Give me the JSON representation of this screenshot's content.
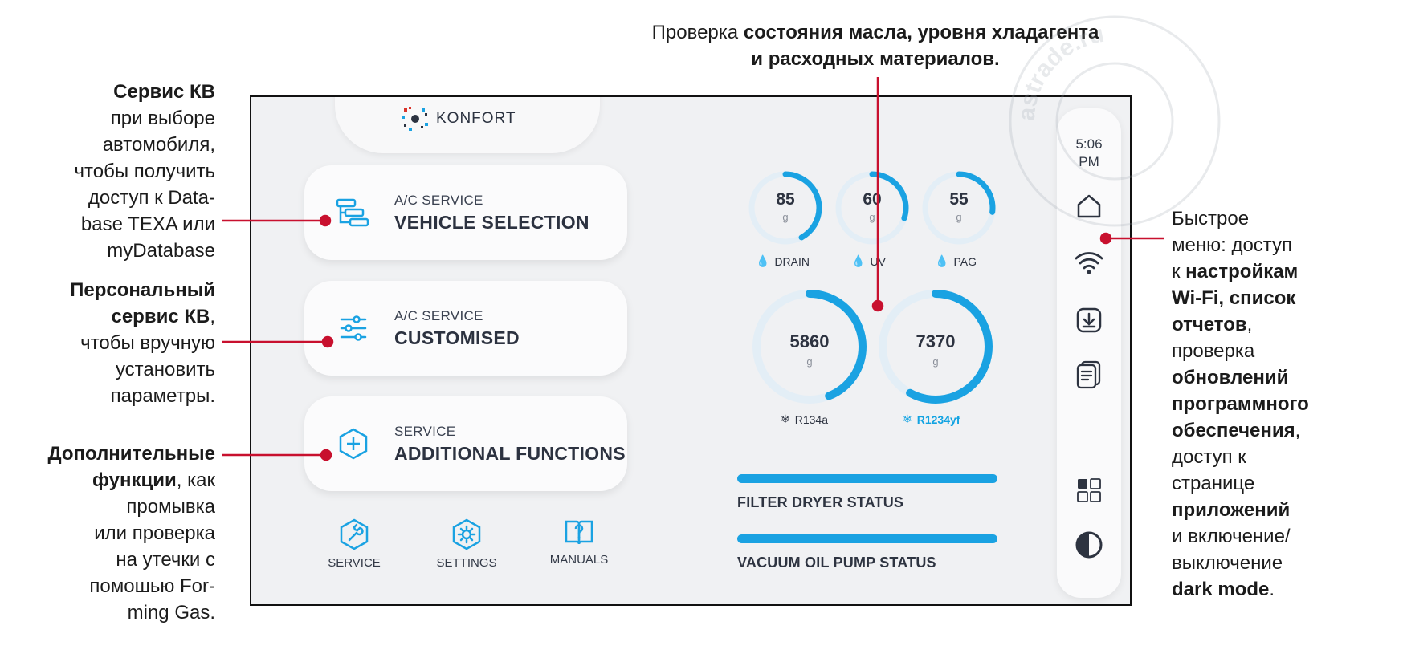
{
  "annotations": {
    "left_service_kb": {
      "bold": "Сервис КВ",
      "lines": [
        "при выборе",
        "автомобиля,",
        "чтобы получить",
        "доступ к Data-",
        "base TEXA или",
        "myDatabase"
      ]
    },
    "left_personal": {
      "bold1": "Персональный",
      "bold2": "сервис КВ",
      "after": ",",
      "lines": [
        "чтобы вручную",
        "установить",
        "параметры."
      ]
    },
    "left_additional": {
      "bold1": "Дополнительные",
      "bold2": "функции",
      "after": ", как",
      "lines": [
        "промывка",
        "или проверка",
        "на утечки с",
        "помошью For-",
        "ming Gas."
      ]
    },
    "top_check": {
      "pre": "Проверка ",
      "bold1": "состояния масла, уровня хладагента",
      "bold2": "и расходных материалов."
    },
    "right_quick": {
      "l1": "Быстрое",
      "l2": "меню: доступ",
      "l3_pre": "к ",
      "l3_bold": "настройкам",
      "l4_bold": "Wi-Fi, список",
      "l5_bold": "отчетов",
      "l5_after": ",",
      "l6": "проверка",
      "l7_bold": "обновлений",
      "l8_bold": "программного",
      "l9_bold": "обеспечения",
      "l9_after": ",",
      "l10": "доступ к",
      "l11": "странице",
      "l12_bold": "приложений",
      "l13": "и включение/",
      "l14": "выключение",
      "l15_bold": "dark mode",
      "l15_after": "."
    }
  },
  "screen": {
    "logo_text": "KONFORT",
    "cards": [
      {
        "small": "A/C SERVICE",
        "big": "VEHICLE SELECTION",
        "icon": "database-list-icon"
      },
      {
        "small": "A/C SERVICE",
        "big": "CUSTOMISED",
        "icon": "sliders-icon"
      },
      {
        "small": "SERVICE",
        "big": "ADDITIONAL FUNCTIONS",
        "icon": "plus-hexagon-icon"
      }
    ],
    "bottom_buttons": [
      {
        "label": "SERVICE",
        "icon": "wrench-hexagon-icon"
      },
      {
        "label": "SETTINGS",
        "icon": "gear-hexagon-icon"
      },
      {
        "label": "MANUALS",
        "icon": "book-question-icon"
      }
    ],
    "small_gauges": [
      {
        "value": "85",
        "unit": "g",
        "label": "DRAIN",
        "fill": 0.42
      },
      {
        "value": "60",
        "unit": "g",
        "label": "UV",
        "fill": 0.3
      },
      {
        "value": "55",
        "unit": "g",
        "label": "PAG",
        "fill": 0.27
      }
    ],
    "big_gauges": [
      {
        "value": "5860",
        "unit": "g",
        "label": "R134a",
        "fill": 0.44,
        "accent": false
      },
      {
        "value": "7370",
        "unit": "g",
        "label": "R1234yf",
        "fill": 0.58,
        "accent": true
      }
    ],
    "status_bars": [
      {
        "label": "FILTER DRYER STATUS",
        "level": 1.0
      },
      {
        "label": "VACUUM OIL PUMP STATUS",
        "level": 1.0
      }
    ],
    "sidebar": {
      "time_line1": "5:06",
      "time_line2": "PM",
      "icons": [
        "home-icon",
        "wifi-icon",
        "download-icon",
        "reports-icon",
        "apps-grid-icon",
        "dark-mode-icon"
      ]
    }
  },
  "watermark_text": "astrade.ru",
  "colors": {
    "accent": "#1aa2e2",
    "annotation_line": "#c8102e",
    "ring_track": "#e3eef6"
  }
}
